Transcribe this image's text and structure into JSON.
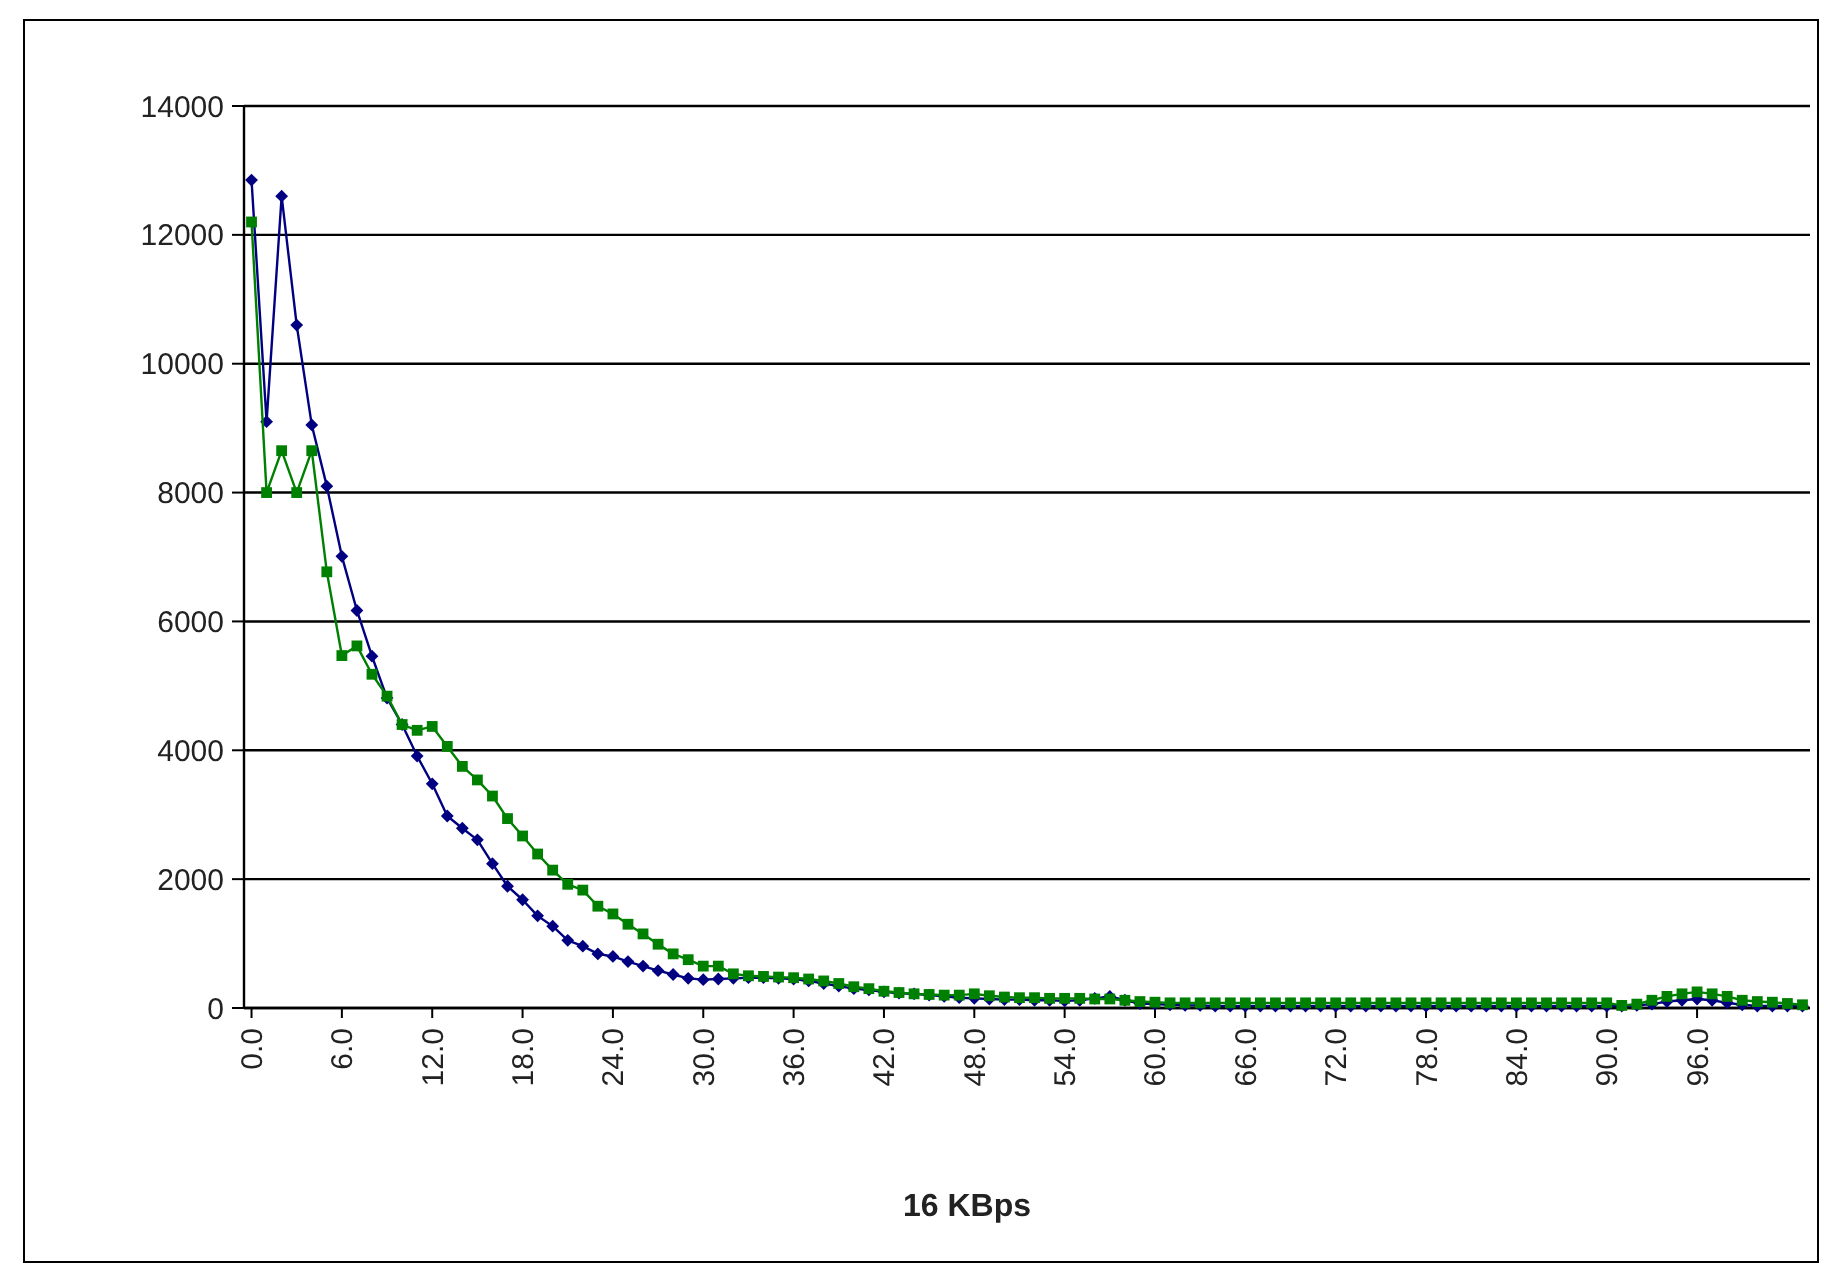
{
  "chart_data": {
    "type": "line",
    "xlabel": "16 KBps",
    "x": [
      0,
      1,
      2,
      3,
      4,
      5,
      6,
      7,
      8,
      9,
      10,
      11,
      12,
      13,
      14,
      15,
      16,
      17,
      18,
      19,
      20,
      21,
      22,
      23,
      24,
      25,
      26,
      27,
      28,
      29,
      30,
      31,
      32,
      33,
      34,
      35,
      36,
      37,
      38,
      39,
      40,
      41,
      42,
      43,
      44,
      45,
      46,
      47,
      48,
      49,
      50,
      51,
      52,
      53,
      54,
      55,
      56,
      57,
      58,
      59,
      60,
      61,
      62,
      63,
      64,
      65,
      66,
      67,
      68,
      69,
      70,
      71,
      72,
      73,
      74,
      75,
      76,
      77,
      78,
      79,
      80,
      81,
      82,
      83,
      84,
      85,
      86,
      87,
      88,
      89,
      90,
      91,
      92,
      93,
      94,
      95,
      96,
      97,
      98,
      99,
      100,
      101,
      102,
      103
    ],
    "series": [
      {
        "color": "#000080",
        "marker": "diamond",
        "values": [
          12850,
          9100,
          12600,
          10600,
          9050,
          8100,
          7010,
          6170,
          5460,
          4810,
          4400,
          3910,
          3480,
          2980,
          2790,
          2610,
          2240,
          1890,
          1680,
          1430,
          1270,
          1050,
          960,
          840,
          800,
          720,
          650,
          580,
          520,
          460,
          440,
          450,
          460,
          470,
          470,
          460,
          450,
          420,
          380,
          340,
          300,
          280,
          250,
          230,
          220,
          200,
          180,
          160,
          150,
          140,
          130,
          130,
          120,
          120,
          110,
          120,
          150,
          180,
          120,
          70,
          60,
          50,
          40,
          40,
          30,
          30,
          30,
          30,
          30,
          30,
          30,
          30,
          30,
          30,
          30,
          30,
          30,
          30,
          30,
          30,
          30,
          30,
          30,
          30,
          30,
          30,
          30,
          30,
          30,
          30,
          30,
          30,
          40,
          60,
          100,
          120,
          140,
          120,
          80,
          50,
          30,
          30,
          30,
          30
        ]
      },
      {
        "color": "#008000",
        "marker": "square",
        "values": [
          12200,
          8000,
          8650,
          8000,
          8650,
          6770,
          5470,
          5620,
          5180,
          4840,
          4400,
          4310,
          4370,
          4060,
          3750,
          3540,
          3290,
          2940,
          2670,
          2390,
          2140,
          1920,
          1830,
          1580,
          1460,
          1300,
          1150,
          990,
          840,
          750,
          650,
          650,
          530,
          500,
          490,
          480,
          470,
          450,
          420,
          380,
          330,
          300,
          260,
          240,
          220,
          210,
          200,
          200,
          220,
          190,
          170,
          160,
          160,
          150,
          150,
          150,
          140,
          140,
          120,
          100,
          90,
          80,
          80,
          80,
          80,
          80,
          80,
          80,
          80,
          80,
          80,
          80,
          80,
          80,
          80,
          80,
          80,
          80,
          80,
          80,
          80,
          80,
          80,
          80,
          80,
          80,
          80,
          80,
          80,
          80,
          80,
          40,
          60,
          120,
          180,
          220,
          250,
          220,
          180,
          120,
          100,
          90,
          70,
          50
        ]
      }
    ],
    "xlim": [
      -0.5,
      103.5
    ],
    "xticks": [
      {
        "value": 0,
        "label": "0.0"
      },
      {
        "value": 6,
        "label": "6.0"
      },
      {
        "value": 12,
        "label": "12.0"
      },
      {
        "value": 18,
        "label": "18.0"
      },
      {
        "value": 24,
        "label": "24.0"
      },
      {
        "value": 30,
        "label": "30.0"
      },
      {
        "value": 36,
        "label": "36.0"
      },
      {
        "value": 42,
        "label": "42.0"
      },
      {
        "value": 48,
        "label": "48.0"
      },
      {
        "value": 54,
        "label": "54.0"
      },
      {
        "value": 60,
        "label": "60.0"
      },
      {
        "value": 66,
        "label": "66.0"
      },
      {
        "value": 72,
        "label": "72.0"
      },
      {
        "value": 78,
        "label": "78.0"
      },
      {
        "value": 84,
        "label": "84.0"
      },
      {
        "value": 90,
        "label": "90.0"
      },
      {
        "value": 96,
        "label": "96.0"
      }
    ],
    "ylim": [
      0,
      14000
    ],
    "yticks": [
      0,
      2000,
      4000,
      6000,
      8000,
      10000,
      12000,
      14000
    ],
    "grid": "y",
    "line_style": "solid"
  }
}
